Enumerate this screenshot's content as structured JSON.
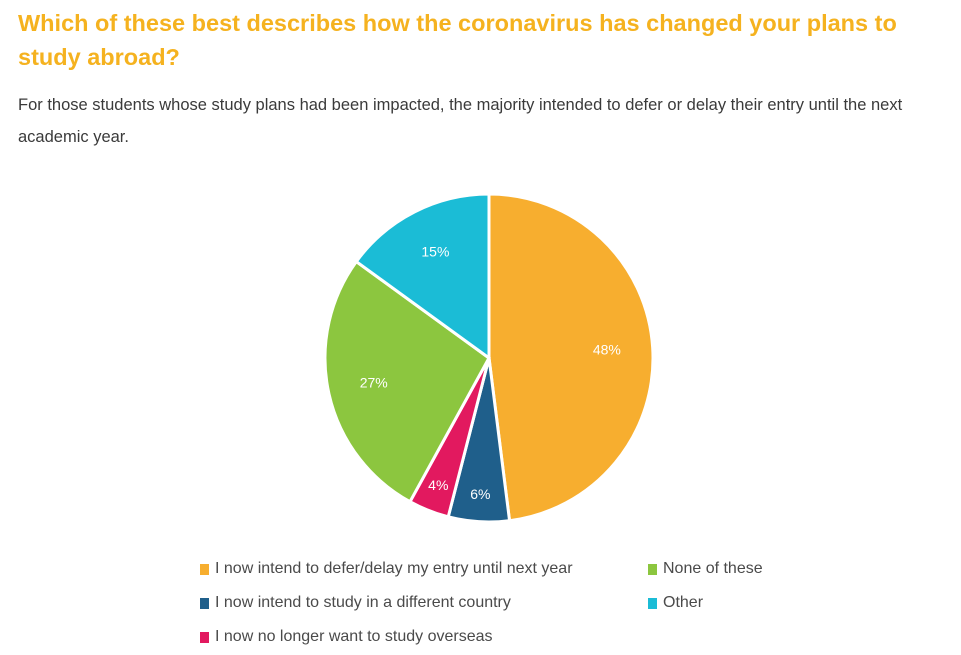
{
  "chart_data": {
    "type": "pie",
    "title": "Which of these best describes how the coronavirus has changed your plans to study abroad?",
    "subtitle": "For those students whose study plans had been impacted, the majority intended to defer or delay their entry until the next academic year.",
    "slices": [
      {
        "label": "I now intend to defer/delay my entry until next year",
        "value": 48,
        "value_label": "48%",
        "color": "#f7ae2f"
      },
      {
        "label": "I now intend to study in a different country",
        "value": 6,
        "value_label": "6%",
        "color": "#1f5f8b"
      },
      {
        "label": "I now no longer want to study overseas",
        "value": 4,
        "value_label": "4%",
        "color": "#e2195f"
      },
      {
        "label": "None of these",
        "value": 27,
        "value_label": "27%",
        "color": "#8cc63f"
      },
      {
        "label": "Other",
        "value": 15,
        "value_label": "15%",
        "color": "#1bbcd6"
      }
    ]
  }
}
